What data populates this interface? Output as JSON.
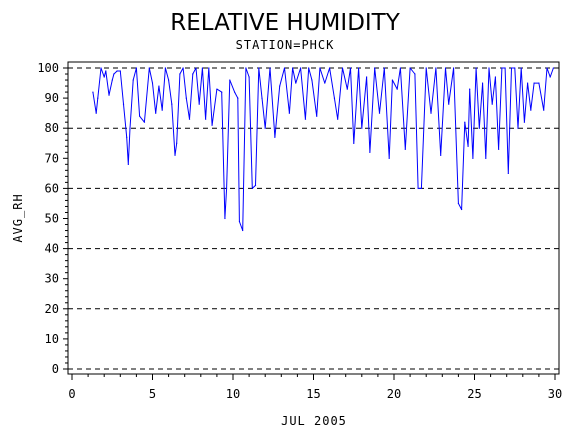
{
  "chart_data": {
    "type": "line",
    "title": "RELATIVE HUMIDITY",
    "subtitle": "STATION=PHCK",
    "xlabel": "JUL 2005",
    "ylabel": "AVG_RH",
    "xlim": [
      0,
      30
    ],
    "ylim": [
      0,
      100
    ],
    "xticks": [
      0,
      5,
      10,
      15,
      20,
      25,
      30
    ],
    "yticks": [
      0,
      10,
      20,
      30,
      40,
      50,
      60,
      70,
      80,
      90,
      100
    ],
    "y_gridlines": [
      0,
      20,
      40,
      60,
      80,
      100
    ],
    "grid": "dashed horizontal lines every 20",
    "legend": "none",
    "series": [
      {
        "color": "#0000ff",
        "x": [
          1.3,
          1.5,
          1.6,
          1.8,
          2.0,
          2.1,
          2.3,
          2.5,
          2.6,
          2.8,
          3.0,
          3.2,
          3.4,
          3.5,
          3.6,
          3.8,
          4.0,
          4.2,
          4.5,
          4.8,
          5.0,
          5.2,
          5.4,
          5.6,
          5.8,
          6.0,
          6.2,
          6.4,
          6.5,
          6.7,
          6.9,
          7.1,
          7.3,
          7.5,
          7.7,
          7.9,
          8.1,
          8.3,
          8.5,
          8.7,
          9.0,
          9.3,
          9.5,
          9.6,
          9.8,
          10.1,
          10.3,
          10.4,
          10.6,
          10.8,
          11.0,
          11.2,
          11.4,
          11.6,
          11.8,
          12.0,
          12.3,
          12.6,
          12.9,
          13.2,
          13.5,
          13.7,
          13.9,
          14.2,
          14.5,
          14.7,
          14.9,
          15.2,
          15.4,
          15.7,
          16.0,
          16.3,
          16.5,
          16.8,
          17.1,
          17.3,
          17.5,
          17.8,
          18.0,
          18.3,
          18.5,
          18.8,
          19.1,
          19.4,
          19.7,
          19.9,
          20.2,
          20.4,
          20.7,
          21.0,
          21.3,
          21.5,
          21.7,
          22.0,
          22.3,
          22.6,
          22.9,
          23.2,
          23.4,
          23.7,
          24.0,
          24.2,
          24.4,
          24.6,
          24.7,
          24.9,
          25.1,
          25.3,
          25.5,
          25.7,
          25.9,
          26.1,
          26.3,
          26.5,
          26.7,
          26.9,
          27.1,
          27.3,
          27.5,
          27.7,
          27.9,
          28.1,
          28.3,
          28.5,
          28.7,
          29.0,
          29.3,
          29.5,
          29.7,
          29.9
        ],
        "y": [
          92,
          85,
          90,
          100,
          97,
          99,
          91,
          96,
          98,
          99,
          99,
          88,
          77,
          68,
          80,
          96,
          100,
          84,
          82,
          100,
          95,
          85,
          94,
          86,
          100,
          96,
          88,
          71,
          75,
          98,
          100,
          90,
          83,
          98,
          100,
          88,
          100,
          83,
          100,
          81,
          93,
          92,
          50,
          60,
          96,
          92,
          90,
          49,
          46,
          100,
          97,
          60,
          61,
          100,
          90,
          80,
          100,
          77,
          94,
          100,
          85,
          100,
          95,
          100,
          83,
          100,
          96,
          84,
          100,
          95,
          100,
          90,
          83,
          100,
          93,
          100,
          75,
          100,
          80,
          97,
          72,
          100,
          85,
          100,
          70,
          96,
          93,
          100,
          73,
          100,
          98,
          60,
          60,
          100,
          85,
          100,
          71,
          100,
          88,
          100,
          55,
          53,
          82,
          74,
          93,
          70,
          100,
          80,
          95,
          70,
          100,
          88,
          97,
          73,
          100,
          100,
          65,
          100,
          100,
          80,
          100,
          82,
          95,
          86,
          95,
          95,
          86,
          100,
          97,
          100
        ]
      }
    ]
  }
}
